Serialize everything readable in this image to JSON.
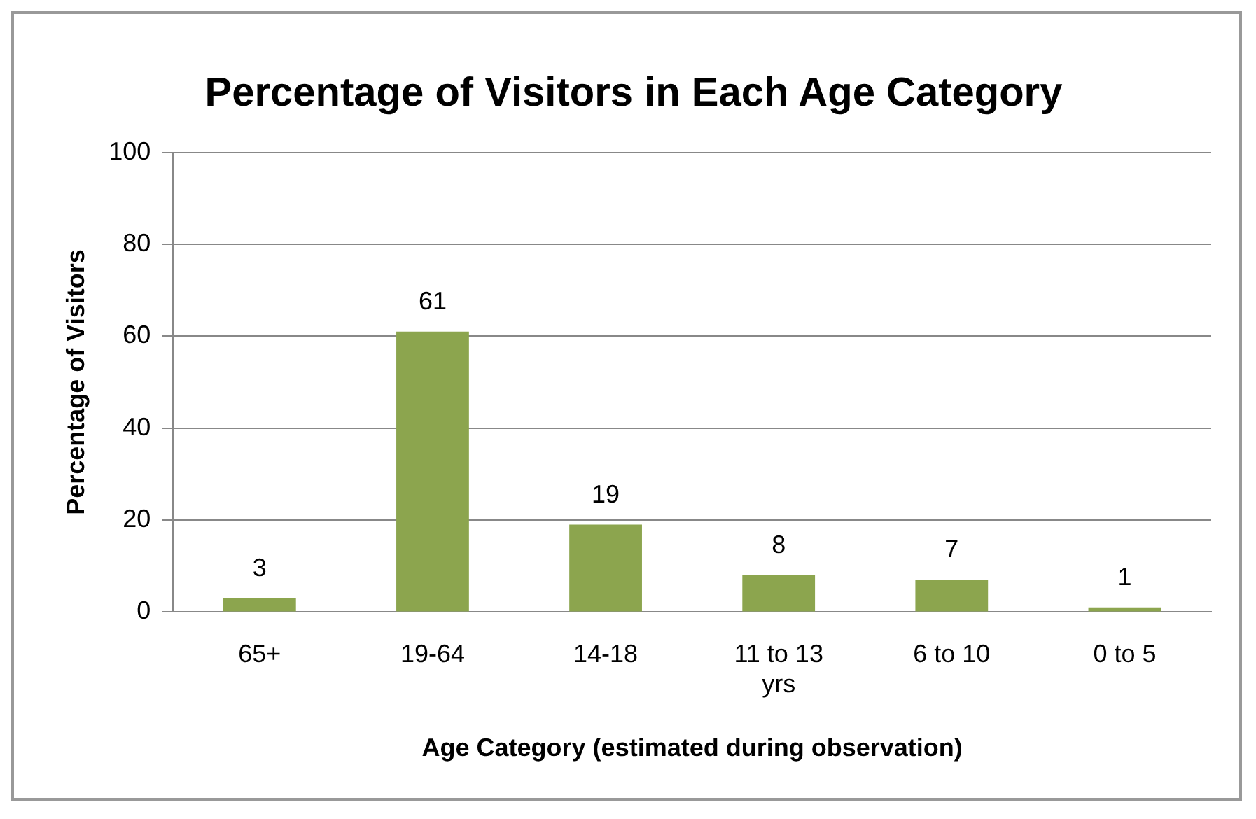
{
  "chart_data": {
    "type": "bar",
    "title": "Percentage of Visitors in Each Age Category",
    "xlabel": "Age Category (estimated during observation)",
    "ylabel": "Percentage of Visitors",
    "categories": [
      "65+",
      "19-64",
      "14-18",
      "11 to 13 yrs",
      "6 to 10",
      "0 to 5"
    ],
    "values": [
      3,
      61,
      19,
      8,
      7,
      1
    ],
    "color": "#8ca54e",
    "ylim": [
      0,
      100
    ],
    "yticks": [
      0,
      20,
      40,
      60,
      80,
      100
    ],
    "grid": "y",
    "data_labels": true
  }
}
